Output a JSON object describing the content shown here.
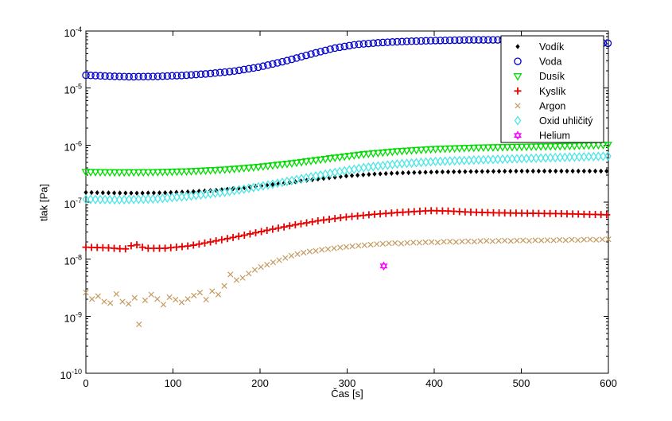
{
  "figure": {
    "background": "#ffffff",
    "axis_color": "#000000",
    "text_color": "#000000"
  },
  "chart_data": {
    "type": "scatter",
    "title": "",
    "xlabel": "Čas [s]",
    "ylabel": "tlak [Pa]",
    "xlim": [
      0,
      600
    ],
    "xticks": [
      0,
      100,
      200,
      300,
      400,
      500,
      600
    ],
    "yscale": "log",
    "ytick_exponents": [
      -10,
      -9,
      -8,
      -7,
      -6,
      -5,
      -4
    ],
    "grid": false,
    "legend_position": "top-right",
    "legend_labels": [
      "Vodík",
      "Voda",
      "Dusík",
      "Kyslík",
      "Argon",
      "Oxid uhličitý",
      "Helium"
    ],
    "series": [
      {
        "id": "vodik",
        "name": "Vodík",
        "color": "#000000",
        "marker": "diamond-filled",
        "step": 6.5,
        "anchors": [
          [
            0,
            1.48e-07
          ],
          [
            30,
            1.45e-07
          ],
          [
            60,
            1.44e-07
          ],
          [
            90,
            1.46e-07
          ],
          [
            120,
            1.52e-07
          ],
          [
            150,
            1.62e-07
          ],
          [
            180,
            1.78e-07
          ],
          [
            210,
            2e-07
          ],
          [
            240,
            2.28e-07
          ],
          [
            270,
            2.58e-07
          ],
          [
            300,
            2.88e-07
          ],
          [
            330,
            3.1e-07
          ],
          [
            360,
            3.25e-07
          ],
          [
            400,
            3.38e-07
          ],
          [
            450,
            3.45e-07
          ],
          [
            500,
            3.5e-07
          ],
          [
            550,
            3.5e-07
          ],
          [
            600,
            3.5e-07
          ]
        ]
      },
      {
        "id": "voda",
        "name": "Voda",
        "color": "#0000CC",
        "marker": "circle",
        "step": 5.5,
        "anchors": [
          [
            0,
            1.68e-05
          ],
          [
            25,
            1.62e-05
          ],
          [
            50,
            1.58e-05
          ],
          [
            80,
            1.6e-05
          ],
          [
            110,
            1.66e-05
          ],
          [
            140,
            1.78e-05
          ],
          [
            170,
            1.98e-05
          ],
          [
            200,
            2.35e-05
          ],
          [
            230,
            3e-05
          ],
          [
            260,
            4e-05
          ],
          [
            285,
            5e-05
          ],
          [
            310,
            5.8e-05
          ],
          [
            340,
            6.3e-05
          ],
          [
            370,
            6.6e-05
          ],
          [
            400,
            6.8e-05
          ],
          [
            440,
            7e-05
          ],
          [
            480,
            7e-05
          ],
          [
            520,
            6.8e-05
          ],
          [
            560,
            6.5e-05
          ],
          [
            600,
            6.1e-05
          ]
        ]
      },
      {
        "id": "dusik",
        "name": "Dusík",
        "color": "#00DC00",
        "marker": "triangle-down",
        "step": 5.5,
        "anchors": [
          [
            0,
            3.4e-07
          ],
          [
            40,
            3.35e-07
          ],
          [
            80,
            3.38e-07
          ],
          [
            120,
            3.5e-07
          ],
          [
            160,
            3.75e-07
          ],
          [
            200,
            4.2e-07
          ],
          [
            240,
            4.9e-07
          ],
          [
            280,
            5.9e-07
          ],
          [
            320,
            7e-07
          ],
          [
            360,
            7.9e-07
          ],
          [
            400,
            8.6e-07
          ],
          [
            450,
            9.1e-07
          ],
          [
            500,
            9.4e-07
          ],
          [
            550,
            9.7e-07
          ],
          [
            600,
            1.02e-06
          ]
        ]
      },
      {
        "id": "kyslik",
        "name": "Kyslík",
        "color": "#E60000",
        "marker": "plus",
        "step": 6.5,
        "anchors": [
          [
            0,
            1.62e-08
          ],
          [
            25,
            1.58e-08
          ],
          [
            45,
            1.5e-08
          ],
          [
            56,
            1.85e-08
          ],
          [
            68,
            1.55e-08
          ],
          [
            90,
            1.55e-08
          ],
          [
            120,
            1.72e-08
          ],
          [
            150,
            2.1e-08
          ],
          [
            180,
            2.6e-08
          ],
          [
            210,
            3.25e-08
          ],
          [
            240,
            4e-08
          ],
          [
            270,
            4.8e-08
          ],
          [
            300,
            5.5e-08
          ],
          [
            330,
            6.1e-08
          ],
          [
            360,
            6.6e-08
          ],
          [
            395,
            7.1e-08
          ],
          [
            415,
            7e-08
          ],
          [
            440,
            6.7e-08
          ],
          [
            470,
            6.5e-08
          ],
          [
            500,
            6.4e-08
          ],
          [
            540,
            6.3e-08
          ],
          [
            600,
            6e-08
          ]
        ]
      },
      {
        "id": "argon",
        "name": "Argon",
        "color": "#C49A5E",
        "marker": "x",
        "points": [
          [
            0,
            2.6e-09
          ],
          [
            7,
            2e-09
          ],
          [
            14,
            2.25e-09
          ],
          [
            21,
            1.8e-09
          ],
          [
            28,
            1.7e-09
          ],
          [
            35,
            2.45e-09
          ],
          [
            42,
            1.8e-09
          ],
          [
            49,
            1.65e-09
          ],
          [
            56,
            2.1e-09
          ],
          [
            61,
            7.2e-10
          ],
          [
            68,
            1.9e-09
          ],
          [
            75,
            2.4e-09
          ],
          [
            82,
            2e-09
          ],
          [
            89,
            1.6e-09
          ],
          [
            96,
            2.15e-09
          ],
          [
            103,
            1.95e-09
          ],
          [
            110,
            1.75e-09
          ],
          [
            117,
            2e-09
          ],
          [
            124,
            2.3e-09
          ],
          [
            131,
            2.6e-09
          ],
          [
            138,
            1.95e-09
          ],
          [
            145,
            2.75e-09
          ],
          [
            152,
            2.4e-09
          ],
          [
            159,
            3.4e-09
          ],
          [
            166,
            5.4e-09
          ],
          [
            173,
            4.3e-09
          ],
          [
            180,
            4.7e-09
          ],
          [
            187,
            5.6e-09
          ],
          [
            194,
            6.5e-09
          ],
          [
            201,
            7.3e-09
          ],
          [
            208,
            8e-09
          ],
          [
            215,
            8.8e-09
          ],
          [
            222,
            9.6e-09
          ],
          [
            229,
            1.05e-08
          ],
          [
            236,
            1.15e-08
          ],
          [
            243,
            1.23e-08
          ],
          [
            250,
            1.3e-08
          ],
          [
            257,
            1.36e-08
          ],
          [
            264,
            1.4e-08
          ],
          [
            271,
            1.46e-08
          ],
          [
            278,
            1.5e-08
          ],
          [
            285,
            1.55e-08
          ],
          [
            292,
            1.6e-08
          ],
          [
            299,
            1.64e-08
          ],
          [
            306,
            1.68e-08
          ],
          [
            313,
            1.72e-08
          ],
          [
            320,
            1.76e-08
          ],
          [
            327,
            1.8e-08
          ],
          [
            334,
            1.84e-08
          ],
          [
            341,
            1.86e-08
          ],
          [
            348,
            1.9e-08
          ],
          [
            355,
            1.92e-08
          ],
          [
            362,
            1.88e-08
          ],
          [
            369,
            1.93e-08
          ],
          [
            376,
            1.96e-08
          ],
          [
            383,
            1.94e-08
          ],
          [
            390,
            1.98e-08
          ],
          [
            397,
            2e-08
          ],
          [
            404,
            1.96e-08
          ],
          [
            411,
            2.02e-08
          ],
          [
            418,
            2.04e-08
          ],
          [
            425,
            2e-08
          ],
          [
            432,
            2.04e-08
          ],
          [
            439,
            2.06e-08
          ],
          [
            446,
            2.03e-08
          ],
          [
            453,
            2.08e-08
          ],
          [
            460,
            2.1e-08
          ],
          [
            467,
            2.06e-08
          ],
          [
            474,
            2.1e-08
          ],
          [
            481,
            2.12e-08
          ],
          [
            488,
            2.08e-08
          ],
          [
            495,
            2.12e-08
          ],
          [
            502,
            2.14e-08
          ],
          [
            509,
            2.1e-08
          ],
          [
            516,
            2.15e-08
          ],
          [
            523,
            2.13e-08
          ],
          [
            530,
            2.16e-08
          ],
          [
            537,
            2.14e-08
          ],
          [
            544,
            2.18e-08
          ],
          [
            551,
            2.15e-08
          ],
          [
            558,
            2.2e-08
          ],
          [
            565,
            2.16e-08
          ],
          [
            572,
            2.2e-08
          ],
          [
            579,
            2.22e-08
          ],
          [
            586,
            2.18e-08
          ],
          [
            593,
            2.22e-08
          ],
          [
            600,
            2.24e-08
          ]
        ]
      },
      {
        "id": "oxid-uhlicity",
        "name": "Oxid uhličitý",
        "color": "#4DE6E6",
        "marker": "diamond-open",
        "step": 5.5,
        "anchors": [
          [
            0,
            1.12e-07
          ],
          [
            40,
            1.1e-07
          ],
          [
            80,
            1.14e-07
          ],
          [
            120,
            1.28e-07
          ],
          [
            160,
            1.5e-07
          ],
          [
            200,
            1.88e-07
          ],
          [
            240,
            2.45e-07
          ],
          [
            280,
            3.2e-07
          ],
          [
            320,
            4.05e-07
          ],
          [
            360,
            4.7e-07
          ],
          [
            400,
            5.15e-07
          ],
          [
            450,
            5.5e-07
          ],
          [
            500,
            5.8e-07
          ],
          [
            550,
            6.1e-07
          ],
          [
            600,
            6.4e-07
          ]
        ]
      },
      {
        "id": "helium",
        "name": "Helium",
        "color": "#FF00FF",
        "marker": "hexagram",
        "points": [
          [
            342,
            7.6e-09
          ]
        ]
      }
    ]
  }
}
